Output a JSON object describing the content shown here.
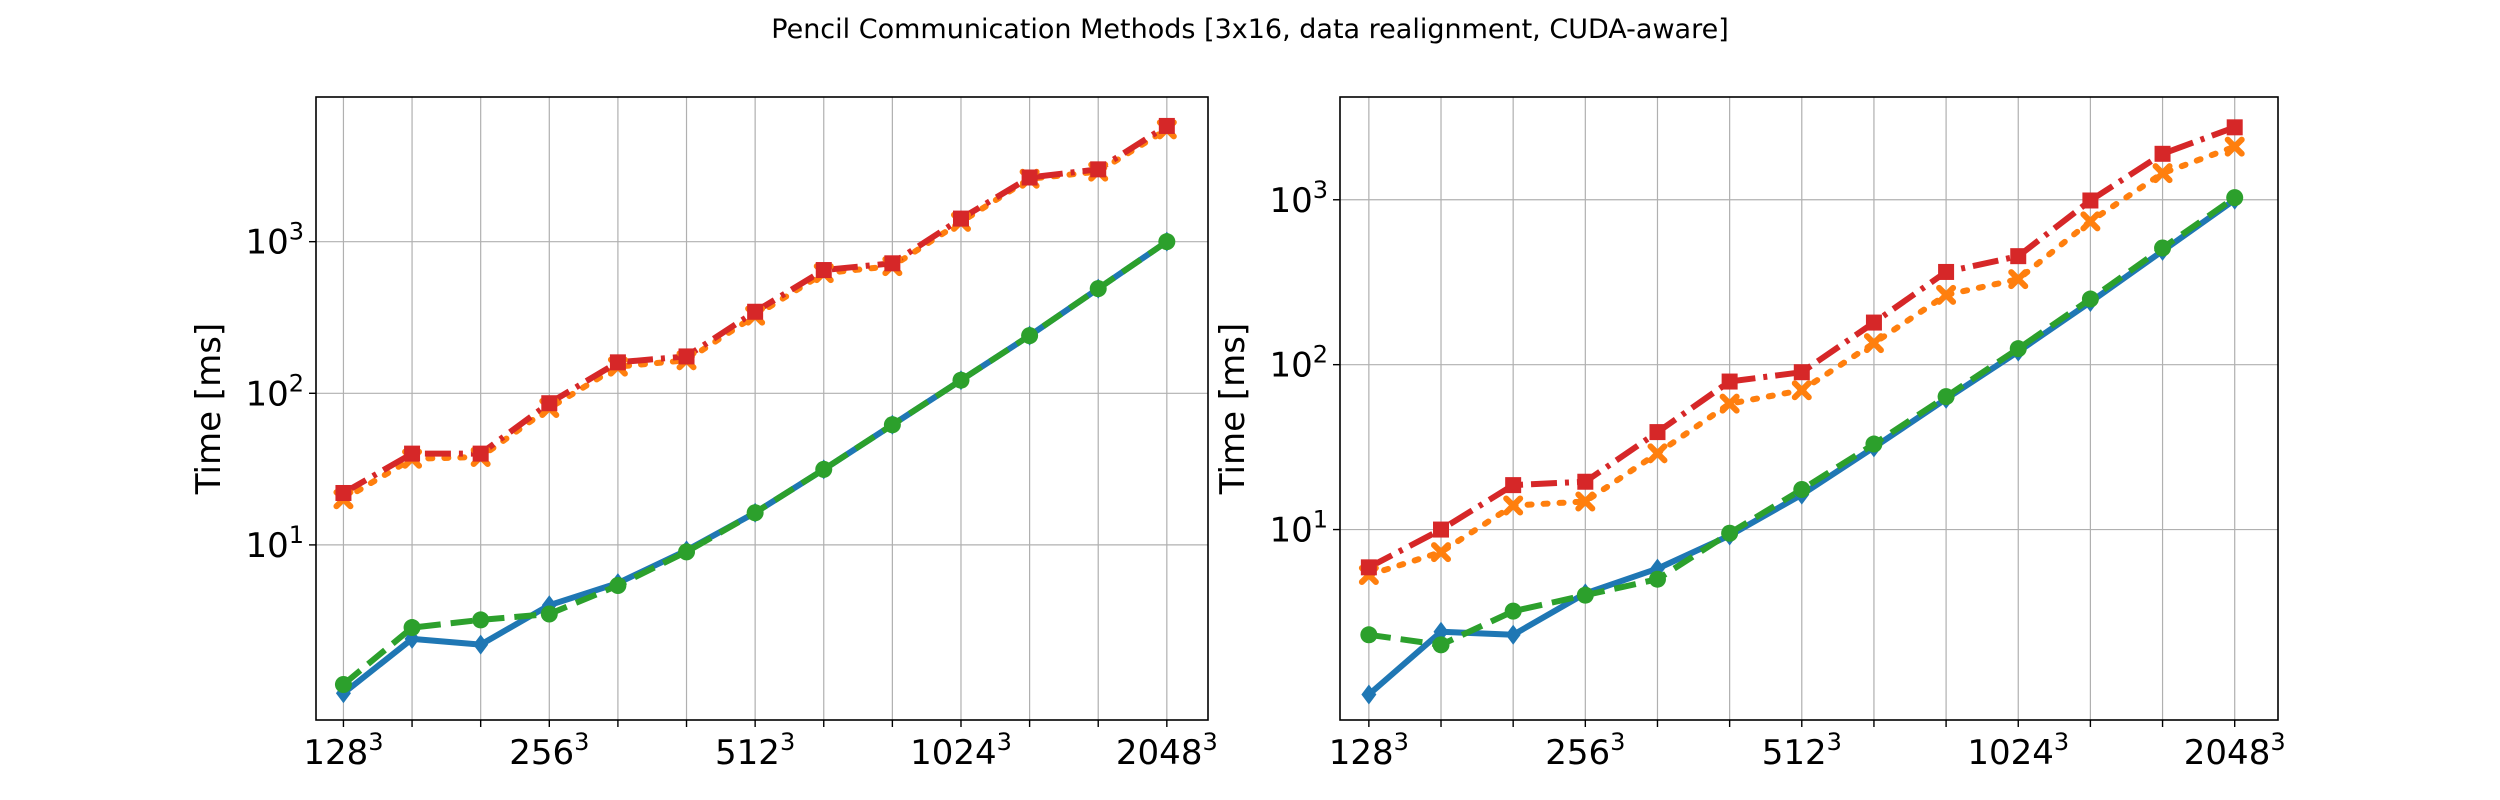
{
  "figure": {
    "title": "Pencil Communication Methods [3x16, data realignment, CUDA-aware]"
  },
  "chart_data": [
    {
      "type": "line",
      "ylabel": "Time [ms]",
      "yscale": "log",
      "ylim": [
        0.7,
        9000
      ],
      "yticks": [
        {
          "value": 10,
          "base": "10",
          "exp": "1"
        },
        {
          "value": 100,
          "base": "10",
          "exp": "2"
        },
        {
          "value": 1000,
          "base": "10",
          "exp": "3"
        }
      ],
      "x": [
        1,
        2,
        3,
        4,
        5,
        6,
        7,
        8,
        9,
        10,
        11,
        12,
        13
      ],
      "xlim": [
        0.6,
        13.6
      ],
      "xticks": [
        {
          "value": 1,
          "base": "128",
          "exp": "3"
        },
        {
          "value": 4,
          "base": "256",
          "exp": "3"
        },
        {
          "value": 7,
          "base": "512",
          "exp": "3"
        },
        {
          "value": 10,
          "base": "1024",
          "exp": "3"
        },
        {
          "value": 13,
          "base": "2048",
          "exp": "3"
        }
      ],
      "grid": true,
      "series": [
        {
          "color": "#1f77b4",
          "dash": "",
          "marker": "diamond",
          "values": [
            1.05,
            2.4,
            2.2,
            4.0,
            5.6,
            9.2,
            16.3,
            31.5,
            62,
            122,
            240,
            490,
            1000
          ]
        },
        {
          "color": "#ff7f0e",
          "dash": "4,12",
          "marker": "x",
          "values": [
            20,
            37,
            38,
            80,
            150,
            165,
            325,
            620,
            690,
            1350,
            2600,
            2900,
            5500
          ]
        },
        {
          "color": "#2ca02c",
          "dash": "22,10",
          "marker": "circle",
          "values": [
            1.2,
            2.85,
            3.2,
            3.5,
            5.4,
            9.0,
            16.3,
            31.5,
            62,
            122,
            240,
            490,
            1000
          ]
        },
        {
          "color": "#d62728",
          "dash": "26,8,4,8",
          "marker": "square",
          "values": [
            22,
            40,
            40,
            86,
            160,
            175,
            345,
            650,
            720,
            1420,
            2650,
            3000,
            5800
          ]
        }
      ]
    },
    {
      "type": "line",
      "ylabel": "Time [ms]",
      "yscale": "log",
      "ylim": [
        0.7,
        4200
      ],
      "yticks": [
        {
          "value": 10,
          "base": "10",
          "exp": "1"
        },
        {
          "value": 100,
          "base": "10",
          "exp": "2"
        },
        {
          "value": 1000,
          "base": "10",
          "exp": "3"
        }
      ],
      "x": [
        1,
        2,
        3,
        4,
        5,
        6,
        7,
        8,
        9,
        10,
        11,
        12,
        13
      ],
      "xlim": [
        0.6,
        13.6
      ],
      "xticks": [
        {
          "value": 1,
          "base": "128",
          "exp": "3"
        },
        {
          "value": 4,
          "base": "256",
          "exp": "3"
        },
        {
          "value": 7,
          "base": "512",
          "exp": "3"
        },
        {
          "value": 10,
          "base": "1024",
          "exp": "3"
        },
        {
          "value": 13,
          "base": "2048",
          "exp": "3"
        }
      ],
      "grid": true,
      "series": [
        {
          "color": "#1f77b4",
          "dash": "",
          "marker": "diamond",
          "values": [
            1.0,
            2.4,
            2.3,
            4.1,
            5.8,
            9.2,
            16.3,
            31.5,
            62,
            120,
            240,
            490,
            1000
          ]
        },
        {
          "color": "#ff7f0e",
          "dash": "4,12",
          "marker": "x",
          "values": [
            5.3,
            7.3,
            14,
            14.8,
            29,
            58,
            70,
            135,
            265,
            330,
            740,
            1450,
            2100
          ]
        },
        {
          "color": "#2ca02c",
          "dash": "22,10",
          "marker": "circle",
          "values": [
            2.3,
            2.0,
            3.2,
            4.0,
            5.0,
            9.5,
            17.5,
            33,
            64,
            125,
            250,
            510,
            1030
          ]
        },
        {
          "color": "#d62728",
          "dash": "26,8,4,8",
          "marker": "square",
          "values": [
            5.9,
            10,
            18.6,
            19.5,
            39,
            79,
            90,
            180,
            365,
            455,
            990,
            1900,
            2750
          ]
        }
      ]
    }
  ]
}
